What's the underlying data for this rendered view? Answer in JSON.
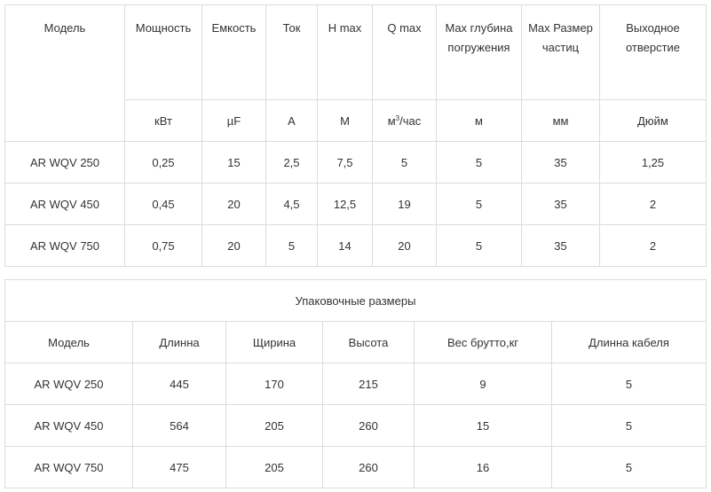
{
  "specs": {
    "headers": {
      "model": "Модель",
      "power": "Мощность",
      "capacity": "Емкость",
      "current": "Ток",
      "hmax": "H max",
      "qmax": "Q max",
      "depth": "Max глубина погружения",
      "particle": "Max Размер частиц",
      "outlet": "Выходное отверстие"
    },
    "units": {
      "power": "кВт",
      "capacity": "µF",
      "current": "А",
      "hmax": "М",
      "qmax_base": "м",
      "qmax_sup": "3",
      "qmax_tail": "/час",
      "depth": "м",
      "particle": "мм",
      "outlet": "Дюйм"
    },
    "rows": [
      {
        "model": "AR WQV 250",
        "power": "0,25",
        "capacity": "15",
        "current": "2,5",
        "hmax": "7,5",
        "qmax": "5",
        "depth": "5",
        "particle": "35",
        "outlet": "1,25"
      },
      {
        "model": "AR WQV 450",
        "power": "0,45",
        "capacity": "20",
        "current": "4,5",
        "hmax": "12,5",
        "qmax": "19",
        "depth": "5",
        "particle": "35",
        "outlet": "2"
      },
      {
        "model": "AR WQV 750",
        "power": "0,75",
        "capacity": "20",
        "current": "5",
        "hmax": "14",
        "qmax": "20",
        "depth": "5",
        "particle": "35",
        "outlet": "2"
      }
    ]
  },
  "packaging": {
    "title": "Упаковочные размеры",
    "headers": {
      "model": "Модель",
      "length": "Длинна",
      "width": "Щирина",
      "height": "Высота",
      "weight": "Вес брутто,кг",
      "cable": "Длинна кабеля"
    },
    "rows": [
      {
        "model": "AR WQV 250",
        "length": "445",
        "width": "170",
        "height": "215",
        "weight": "9",
        "cable": "5"
      },
      {
        "model": "AR WQV 450",
        "length": "564",
        "width": "205",
        "height": "260",
        "weight": "15",
        "cable": "5"
      },
      {
        "model": "AR WQV 750",
        "length": "475",
        "width": "205",
        "height": "260",
        "weight": "16",
        "cable": "5"
      }
    ]
  }
}
